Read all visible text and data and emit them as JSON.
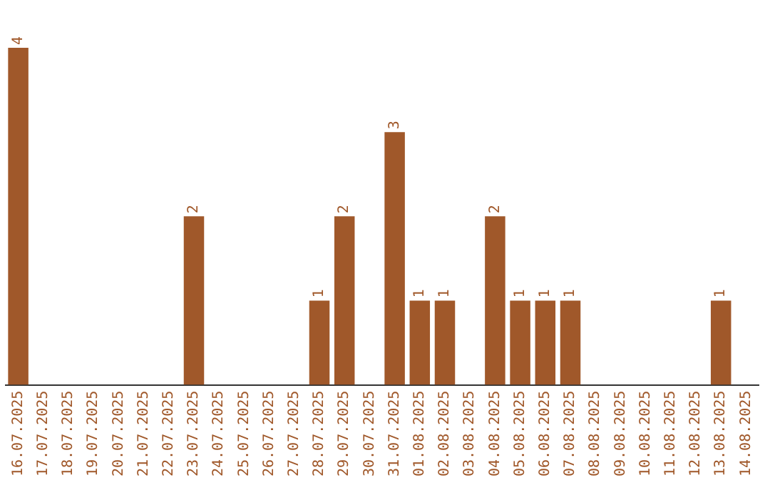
{
  "chart_data": {
    "type": "bar",
    "categories": [
      "16.07.2025",
      "17.07.2025",
      "18.07.2025",
      "19.07.2025",
      "20.07.2025",
      "21.07.2025",
      "22.07.2025",
      "23.07.2025",
      "24.07.2025",
      "25.07.2025",
      "26.07.2025",
      "27.07.2025",
      "28.07.2025",
      "29.07.2025",
      "30.07.2025",
      "31.07.2025",
      "01.08.2025",
      "02.08.2025",
      "03.08.2025",
      "04.08.2025",
      "05.08.2025",
      "06.08.2025",
      "07.08.2025",
      "08.08.2025",
      "09.08.2025",
      "10.08.2025",
      "11.08.2025",
      "12.08.2025",
      "13.08.2025",
      "14.08.2025"
    ],
    "values": [
      4,
      0,
      0,
      0,
      0,
      0,
      0,
      2,
      0,
      0,
      0,
      0,
      1,
      2,
      0,
      3,
      1,
      1,
      0,
      2,
      1,
      1,
      1,
      0,
      0,
      0,
      0,
      0,
      1,
      0
    ],
    "value_labels": [
      "4",
      null,
      null,
      null,
      null,
      null,
      null,
      "2",
      null,
      null,
      null,
      null,
      "1",
      "2",
      null,
      "3",
      "1",
      "1",
      null,
      "2",
      "1",
      "1",
      "1",
      null,
      null,
      null,
      null,
      null,
      "1",
      null
    ],
    "color": "#a0582a",
    "tick_labels": "x",
    "grid": false,
    "legend": false
  }
}
